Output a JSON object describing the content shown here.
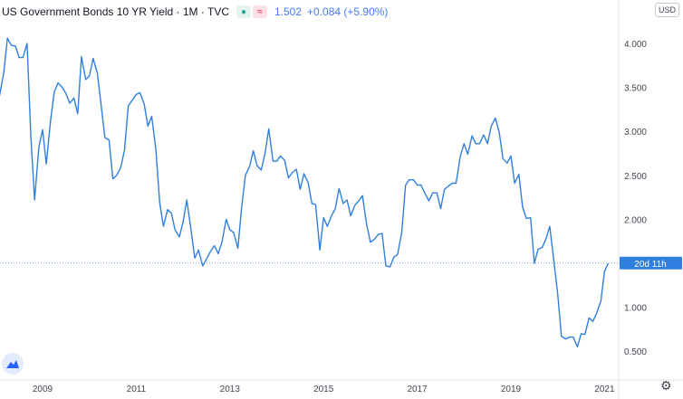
{
  "header": {
    "title": "US Government Bonds 10 YR Yield · 1M · TVC",
    "status_green_icon": "dot-icon",
    "status_red_icon": "approx-icon",
    "price": "1.502",
    "change": "+0.084 (+5.90%)"
  },
  "currency": "USD",
  "price_tag": "20d 11h",
  "chart_data": {
    "type": "line",
    "title": "US Government Bonds 10 YR Yield · 1M · TVC",
    "xlabel": "",
    "ylabel": "",
    "x_ticks": [
      "2009",
      "2011",
      "2013",
      "2015",
      "2017",
      "2019",
      "2021"
    ],
    "y_ticks": [
      "4.000",
      "3.500",
      "3.000",
      "2.500",
      "2.000",
      "1.000",
      "0.500"
    ],
    "ylim": [
      0.5,
      4.0
    ],
    "grid": false,
    "line_color": "#2f7fe0",
    "current_value": 1.502,
    "series": [
      {
        "values": [
          [
            2007.92,
            3.58
          ],
          [
            2008.0,
            3.52
          ],
          [
            2008.08,
            3.4
          ],
          [
            2008.17,
            3.66
          ],
          [
            2008.25,
            4.06
          ],
          [
            2008.33,
            3.98
          ],
          [
            2008.42,
            3.97
          ],
          [
            2008.5,
            3.84
          ],
          [
            2008.58,
            3.84
          ],
          [
            2008.67,
            4.0
          ],
          [
            2008.75,
            2.93
          ],
          [
            2008.83,
            2.22
          ],
          [
            2008.92,
            2.82
          ],
          [
            2009.0,
            3.02
          ],
          [
            2009.08,
            2.63
          ],
          [
            2009.17,
            3.12
          ],
          [
            2009.25,
            3.45
          ],
          [
            2009.33,
            3.55
          ],
          [
            2009.42,
            3.5
          ],
          [
            2009.5,
            3.43
          ],
          [
            2009.58,
            3.32
          ],
          [
            2009.67,
            3.38
          ],
          [
            2009.75,
            3.2
          ],
          [
            2009.83,
            3.85
          ],
          [
            2009.92,
            3.59
          ],
          [
            2010.0,
            3.63
          ],
          [
            2010.08,
            3.83
          ],
          [
            2010.17,
            3.66
          ],
          [
            2010.25,
            3.3
          ],
          [
            2010.33,
            2.93
          ],
          [
            2010.42,
            2.9
          ],
          [
            2010.5,
            2.46
          ],
          [
            2010.58,
            2.5
          ],
          [
            2010.67,
            2.59
          ],
          [
            2010.75,
            2.79
          ],
          [
            2010.83,
            3.29
          ],
          [
            2010.92,
            3.36
          ],
          [
            2011.0,
            3.42
          ],
          [
            2011.08,
            3.44
          ],
          [
            2011.17,
            3.31
          ],
          [
            2011.25,
            3.06
          ],
          [
            2011.33,
            3.17
          ],
          [
            2011.42,
            2.79
          ],
          [
            2011.5,
            2.19
          ],
          [
            2011.58,
            1.92
          ],
          [
            2011.67,
            2.11
          ],
          [
            2011.75,
            2.07
          ],
          [
            2011.83,
            1.88
          ],
          [
            2011.92,
            1.8
          ],
          [
            2012.0,
            1.97
          ],
          [
            2012.08,
            2.22
          ],
          [
            2012.17,
            1.88
          ],
          [
            2012.25,
            1.56
          ],
          [
            2012.33,
            1.65
          ],
          [
            2012.42,
            1.47
          ],
          [
            2012.5,
            1.55
          ],
          [
            2012.58,
            1.63
          ],
          [
            2012.67,
            1.7
          ],
          [
            2012.75,
            1.61
          ],
          [
            2012.83,
            1.74
          ],
          [
            2012.92,
            2.0
          ],
          [
            2013.0,
            1.88
          ],
          [
            2013.08,
            1.85
          ],
          [
            2013.17,
            1.67
          ],
          [
            2013.25,
            2.13
          ],
          [
            2013.33,
            2.5
          ],
          [
            2013.42,
            2.6
          ],
          [
            2013.5,
            2.78
          ],
          [
            2013.58,
            2.61
          ],
          [
            2013.67,
            2.56
          ],
          [
            2013.75,
            2.75
          ],
          [
            2013.83,
            3.03
          ],
          [
            2013.92,
            2.66
          ],
          [
            2014.0,
            2.66
          ],
          [
            2014.08,
            2.72
          ],
          [
            2014.17,
            2.67
          ],
          [
            2014.25,
            2.47
          ],
          [
            2014.33,
            2.53
          ],
          [
            2014.42,
            2.57
          ],
          [
            2014.5,
            2.34
          ],
          [
            2014.58,
            2.52
          ],
          [
            2014.67,
            2.42
          ],
          [
            2014.75,
            2.18
          ],
          [
            2014.83,
            2.17
          ],
          [
            2014.92,
            1.65
          ],
          [
            2015.0,
            2.02
          ],
          [
            2015.08,
            1.92
          ],
          [
            2015.17,
            2.04
          ],
          [
            2015.25,
            2.12
          ],
          [
            2015.33,
            2.35
          ],
          [
            2015.42,
            2.18
          ],
          [
            2015.5,
            2.22
          ],
          [
            2015.58,
            2.04
          ],
          [
            2015.67,
            2.16
          ],
          [
            2015.75,
            2.21
          ],
          [
            2015.83,
            2.27
          ],
          [
            2015.92,
            1.94
          ],
          [
            2016.0,
            1.74
          ],
          [
            2016.08,
            1.77
          ],
          [
            2016.17,
            1.83
          ],
          [
            2016.25,
            1.84
          ],
          [
            2016.33,
            1.47
          ],
          [
            2016.42,
            1.46
          ],
          [
            2016.5,
            1.57
          ],
          [
            2016.58,
            1.6
          ],
          [
            2016.67,
            1.85
          ],
          [
            2016.75,
            2.39
          ],
          [
            2016.83,
            2.45
          ],
          [
            2016.92,
            2.45
          ],
          [
            2017.0,
            2.39
          ],
          [
            2017.08,
            2.39
          ],
          [
            2017.17,
            2.29
          ],
          [
            2017.25,
            2.21
          ],
          [
            2017.33,
            2.3
          ],
          [
            2017.42,
            2.3
          ],
          [
            2017.5,
            2.12
          ],
          [
            2017.58,
            2.34
          ],
          [
            2017.67,
            2.38
          ],
          [
            2017.75,
            2.41
          ],
          [
            2017.83,
            2.41
          ],
          [
            2017.92,
            2.72
          ],
          [
            2018.0,
            2.86
          ],
          [
            2018.08,
            2.74
          ],
          [
            2018.17,
            2.95
          ],
          [
            2018.25,
            2.86
          ],
          [
            2018.33,
            2.86
          ],
          [
            2018.42,
            2.96
          ],
          [
            2018.5,
            2.86
          ],
          [
            2018.58,
            3.06
          ],
          [
            2018.67,
            3.15
          ],
          [
            2018.75,
            2.99
          ],
          [
            2018.83,
            2.69
          ],
          [
            2018.92,
            2.64
          ],
          [
            2019.0,
            2.72
          ],
          [
            2019.08,
            2.41
          ],
          [
            2019.17,
            2.51
          ],
          [
            2019.25,
            2.14
          ],
          [
            2019.33,
            2.01
          ],
          [
            2019.42,
            2.02
          ],
          [
            2019.5,
            1.5
          ],
          [
            2019.58,
            1.66
          ],
          [
            2019.67,
            1.68
          ],
          [
            2019.75,
            1.78
          ],
          [
            2019.83,
            1.92
          ],
          [
            2019.92,
            1.51
          ],
          [
            2020.0,
            1.15
          ],
          [
            2020.08,
            0.67
          ],
          [
            2020.17,
            0.64
          ],
          [
            2020.25,
            0.66
          ],
          [
            2020.33,
            0.66
          ],
          [
            2020.42,
            0.55
          ],
          [
            2020.5,
            0.7
          ],
          [
            2020.58,
            0.69
          ],
          [
            2020.67,
            0.88
          ],
          [
            2020.75,
            0.84
          ],
          [
            2020.83,
            0.93
          ],
          [
            2020.92,
            1.07
          ],
          [
            2021.0,
            1.41
          ],
          [
            2021.08,
            1.5
          ]
        ]
      }
    ]
  }
}
